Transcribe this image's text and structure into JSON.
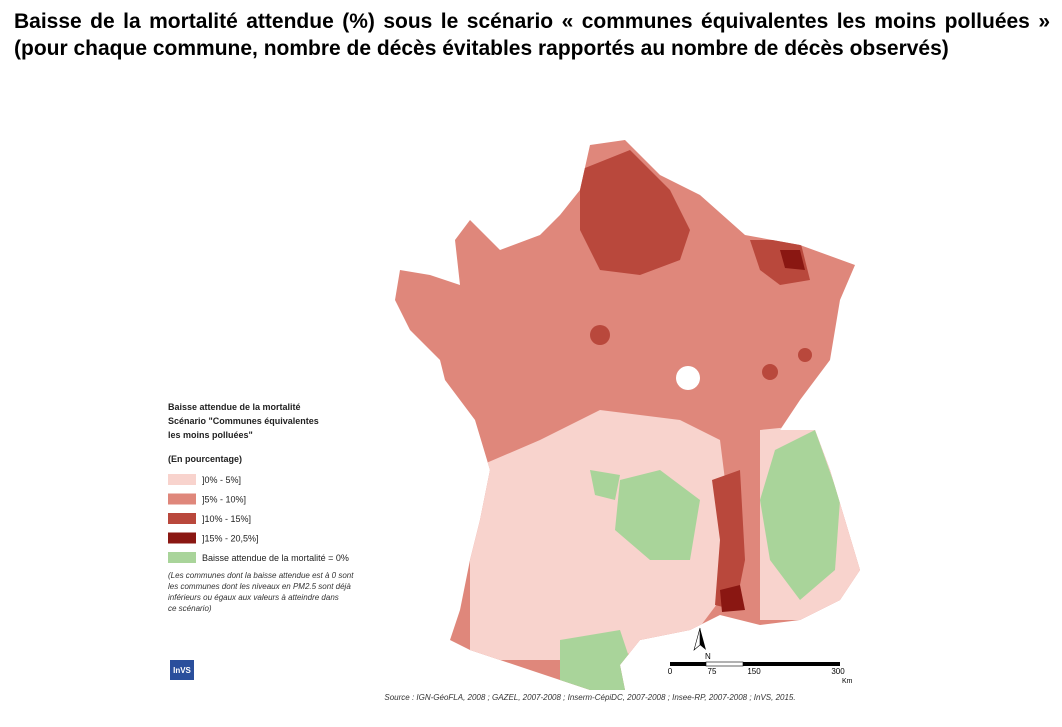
{
  "title": "Baisse de la mortalité attendue (%) sous le scénario « communes équivalentes les moins polluées » (pour chaque commune, nombre de décès évitables rapportés au nombre de décès observés)",
  "legend": {
    "title": [
      "Baisse attendue de la mortalité",
      "Scénario \"Communes équivalentes",
      "les moins polluées\""
    ],
    "subtitle": "(En pourcentage)",
    "items": [
      {
        "label": "]0% - 5%]",
        "color": "#f8d3cd"
      },
      {
        "label": "]5% - 10%]",
        "color": "#df877b"
      },
      {
        "label": "]10% - 15%]",
        "color": "#b9483c"
      },
      {
        "label": "]15% - 20,5%]",
        "color": "#8a1712"
      },
      {
        "label": "Baisse attendue de la mortalité = 0%",
        "color": "#a9d49a"
      }
    ],
    "note": [
      "(Les communes dont la baisse attendue est à 0 sont",
      "les communes dont les niveaux en PM2.5 sont déjà",
      "inférieurs ou égaux aux valeurs à atteindre dans",
      "ce scénario)"
    ]
  },
  "scale": {
    "labels": [
      "0",
      "75",
      "150",
      "300"
    ],
    "unit": "Km"
  },
  "north": "N",
  "logo": "InVS",
  "source": "Source : IGN-GéoFLA, 2008 ; GAZEL, 2007-2008 ; Inserm-CépiDC, 2007-2008 ; Insee-RP, 2007-2008 ; InVS, 2015."
}
